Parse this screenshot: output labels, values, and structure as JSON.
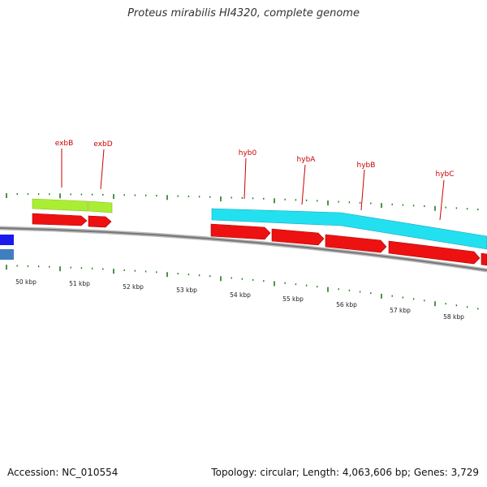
{
  "title": "Proteus mirabilis HI4320, complete genome",
  "footer": {
    "accession": "Accession: NC_010554",
    "stats": "Topology: circular; Length: 4,063,606 bp; Genes: 3,729"
  },
  "colors": {
    "label": "#cc0000",
    "tick": "#1e7a1e",
    "backbone": "#888888",
    "cds": "#ee1111",
    "exb_feature": "#aaee33",
    "hyb_feature": "#22e0f0",
    "left_blue": "#1a1aee",
    "left_steel": "#3f7fbf"
  },
  "gene_labels": [
    "exbB",
    "exbD",
    "hyb0",
    "hybA",
    "hybB",
    "hybC"
  ],
  "kbp_labels": [
    "50 kbp",
    "51 kbp",
    "52 kbp",
    "53 kbp",
    "54 kbp",
    "55 kbp",
    "56 kbp",
    "57 kbp",
    "58 kbp"
  ]
}
